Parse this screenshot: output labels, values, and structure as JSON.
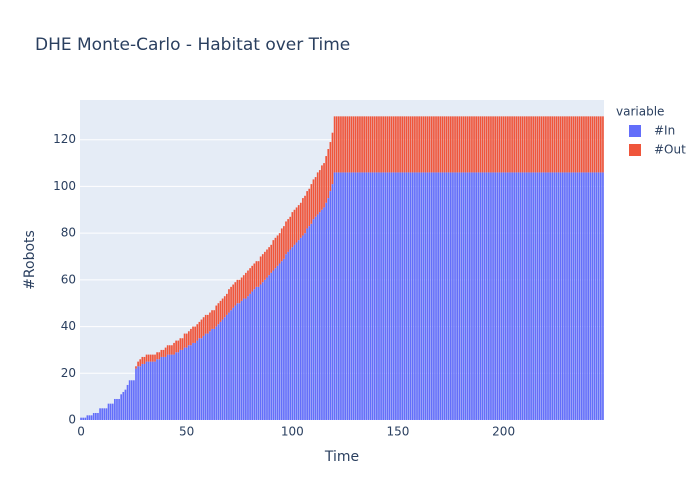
{
  "chart_data": {
    "type": "stacked-bar",
    "title": "DHE Monte-Carlo  - Habitat over Time",
    "x_label": "Time",
    "y_label": "#Robots",
    "legend_title": "variable",
    "legend_position": "right-top",
    "grid": true,
    "xlim": [
      -0.5,
      247.5
    ],
    "xticks": [
      0,
      50,
      100,
      150,
      200
    ],
    "ylim": [
      0,
      137
    ],
    "yticks": [
      0,
      20,
      40,
      60,
      80,
      100,
      120
    ],
    "x": [
      0,
      1,
      2,
      3,
      4,
      5,
      6,
      7,
      8,
      9,
      10,
      11,
      12,
      13,
      14,
      15,
      16,
      17,
      18,
      19,
      20,
      21,
      22,
      23,
      24,
      25,
      26,
      27,
      28,
      29,
      30,
      31,
      32,
      33,
      34,
      35,
      36,
      37,
      38,
      39,
      40,
      41,
      42,
      43,
      44,
      45,
      46,
      47,
      48,
      49,
      50,
      51,
      52,
      53,
      54,
      55,
      56,
      57,
      58,
      59,
      60,
      61,
      62,
      63,
      64,
      65,
      66,
      67,
      68,
      69,
      70,
      71,
      72,
      73,
      74,
      75,
      76,
      77,
      78,
      79,
      80,
      81,
      82,
      83,
      84,
      85,
      86,
      87,
      88,
      89,
      90,
      91,
      92,
      93,
      94,
      95,
      96,
      97,
      98,
      99,
      100,
      101,
      102,
      103,
      104,
      105,
      106,
      107,
      108,
      109,
      110,
      111,
      112,
      113,
      114,
      115,
      116,
      117,
      118,
      119,
      120,
      121,
      122,
      123,
      124,
      125,
      126,
      127,
      128,
      129,
      130,
      131,
      132,
      133,
      134,
      135,
      136,
      137,
      138,
      139,
      140,
      141,
      142,
      143,
      144,
      145,
      146,
      147,
      148,
      149,
      150,
      151,
      152,
      153,
      154,
      155,
      156,
      157,
      158,
      159,
      160,
      161,
      162,
      163,
      164,
      165,
      166,
      167,
      168,
      169,
      170,
      171,
      172,
      173,
      174,
      175,
      176,
      177,
      178,
      179,
      180,
      181,
      182,
      183,
      184,
      185,
      186,
      187,
      188,
      189,
      190,
      191,
      192,
      193,
      194,
      195,
      196,
      197,
      198,
      199,
      200,
      201,
      202,
      203,
      204,
      205,
      206,
      207,
      208,
      209,
      210,
      211,
      212,
      213,
      214,
      215,
      216,
      217,
      218,
      219,
      220,
      221,
      222,
      223,
      224,
      225,
      226,
      227,
      228,
      229,
      230,
      231,
      232,
      233,
      234,
      235,
      236,
      237,
      238,
      239,
      240,
      241,
      242,
      243,
      244,
      245,
      246,
      247
    ],
    "series": [
      {
        "name": "#In",
        "color": "#636efa",
        "values": [
          1,
          1,
          1,
          2,
          2,
          2,
          3,
          3,
          3,
          5,
          5,
          5,
          5,
          7,
          7,
          7,
          9,
          9,
          9,
          11,
          12,
          13,
          15,
          17,
          17,
          17,
          22,
          23,
          23,
          24,
          24,
          25,
          25,
          25,
          25,
          25,
          26,
          26,
          27,
          27,
          27,
          28,
          28,
          28,
          28,
          29,
          29,
          30,
          30,
          31,
          31,
          32,
          32,
          33,
          33,
          34,
          35,
          35,
          36,
          37,
          37,
          38,
          39,
          39,
          40,
          41,
          42,
          43,
          44,
          45,
          46,
          47,
          48,
          49,
          50,
          50,
          51,
          52,
          52,
          53,
          54,
          55,
          56,
          57,
          57,
          58,
          59,
          60,
          61,
          62,
          63,
          64,
          65,
          66,
          67,
          68,
          69,
          71,
          72,
          73,
          74,
          75,
          76,
          77,
          78,
          79,
          80,
          82,
          83,
          84,
          86,
          87,
          88,
          89,
          90,
          91,
          93,
          95,
          98,
          101,
          106,
          106,
          106,
          106,
          106,
          106,
          106,
          106,
          106,
          106,
          106,
          106,
          106,
          106,
          106,
          106,
          106,
          106,
          106,
          106,
          106,
          106,
          106,
          106,
          106,
          106,
          106,
          106,
          106,
          106,
          106,
          106,
          106,
          106,
          106,
          106,
          106,
          106,
          106,
          106,
          106,
          106,
          106,
          106,
          106,
          106,
          106,
          106,
          106,
          106,
          106,
          106,
          106,
          106,
          106,
          106,
          106,
          106,
          106,
          106,
          106,
          106,
          106,
          106,
          106,
          106,
          106,
          106,
          106,
          106,
          106,
          106,
          106,
          106,
          106,
          106,
          106,
          106,
          106,
          106,
          106,
          106,
          106,
          106,
          106,
          106,
          106,
          106,
          106,
          106,
          106,
          106,
          106,
          106,
          106,
          106,
          106,
          106,
          106,
          106,
          106,
          106,
          106,
          106,
          106,
          106,
          106,
          106,
          106,
          106,
          106,
          106,
          106,
          106,
          106,
          106,
          106,
          106,
          106,
          106,
          106,
          106,
          106,
          106,
          106,
          106,
          106,
          106
        ]
      },
      {
        "name": "#Out",
        "color": "#ef553b",
        "values": [
          0,
          0,
          0,
          0,
          0,
          0,
          0,
          0,
          0,
          0,
          0,
          0,
          0,
          0,
          0,
          0,
          0,
          0,
          0,
          0,
          0,
          0,
          0,
          0,
          0,
          0,
          1,
          2,
          3,
          3,
          3,
          3,
          3,
          3,
          3,
          3,
          3,
          3,
          3,
          3,
          4,
          4,
          4,
          4,
          5,
          5,
          5,
          5,
          5,
          6,
          6,
          6,
          7,
          7,
          7,
          7,
          7,
          8,
          8,
          8,
          8,
          8,
          8,
          8,
          9,
          9,
          9,
          9,
          9,
          9,
          10,
          10,
          10,
          10,
          10,
          10,
          10,
          10,
          11,
          11,
          11,
          11,
          11,
          11,
          11,
          12,
          12,
          12,
          12,
          12,
          12,
          13,
          13,
          13,
          13,
          14,
          14,
          14,
          14,
          14,
          15,
          15,
          15,
          15,
          15,
          16,
          16,
          16,
          16,
          17,
          17,
          17,
          18,
          18,
          19,
          19,
          20,
          21,
          21,
          22,
          24,
          24,
          24,
          24,
          24,
          24,
          24,
          24,
          24,
          24,
          24,
          24,
          24,
          24,
          24,
          24,
          24,
          24,
          24,
          24,
          24,
          24,
          24,
          24,
          24,
          24,
          24,
          24,
          24,
          24,
          24,
          24,
          24,
          24,
          24,
          24,
          24,
          24,
          24,
          24,
          24,
          24,
          24,
          24,
          24,
          24,
          24,
          24,
          24,
          24,
          24,
          24,
          24,
          24,
          24,
          24,
          24,
          24,
          24,
          24,
          24,
          24,
          24,
          24,
          24,
          24,
          24,
          24,
          24,
          24,
          24,
          24,
          24,
          24,
          24,
          24,
          24,
          24,
          24,
          24,
          24,
          24,
          24,
          24,
          24,
          24,
          24,
          24,
          24,
          24,
          24,
          24,
          24,
          24,
          24,
          24,
          24,
          24,
          24,
          24,
          24,
          24,
          24,
          24,
          24,
          24,
          24,
          24,
          24,
          24,
          24,
          24,
          24,
          24,
          24,
          24,
          24,
          24,
          24,
          24,
          24,
          24,
          24,
          24,
          24,
          24,
          24,
          24
        ]
      }
    ]
  }
}
